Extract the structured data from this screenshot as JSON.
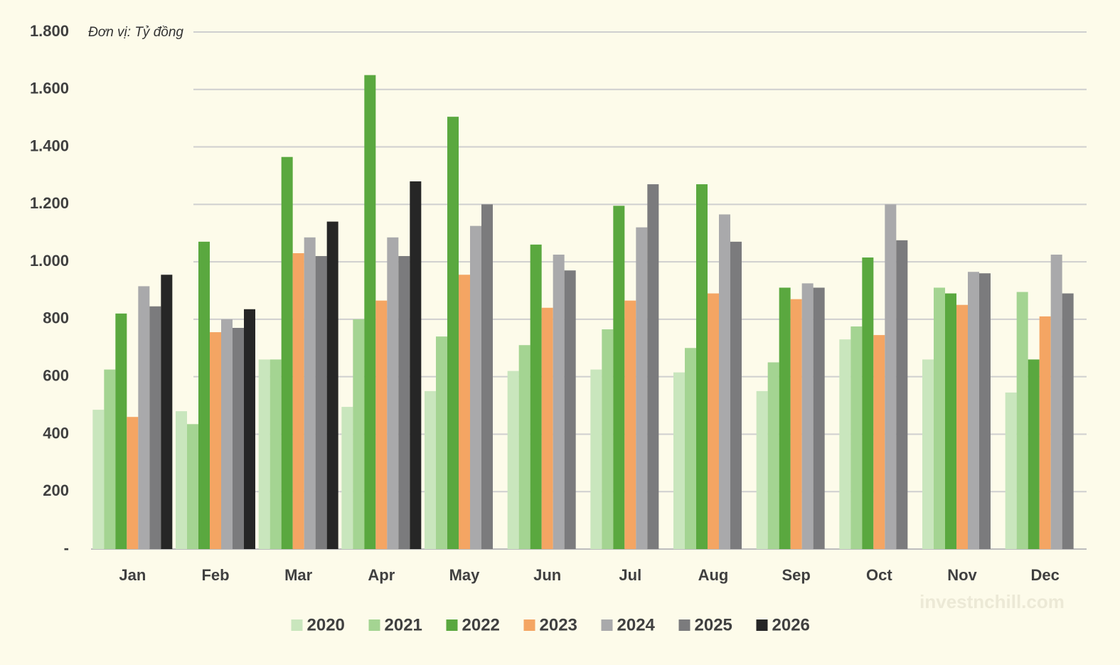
{
  "chart_data": {
    "type": "bar",
    "unit_label": "Đơn vị: Tỷ đồng",
    "watermark": "investnchill.com",
    "categories": [
      "Jan",
      "Feb",
      "Mar",
      "Apr",
      "May",
      "Jun",
      "Jul",
      "Aug",
      "Sep",
      "Oct",
      "Nov",
      "Dec"
    ],
    "series": [
      {
        "name": "2020",
        "color": "#c9e6bd",
        "values": [
          485,
          480,
          660,
          495,
          550,
          620,
          625,
          615,
          550,
          730,
          660,
          545
        ]
      },
      {
        "name": "2021",
        "color": "#a4d492",
        "values": [
          625,
          435,
          660,
          800,
          740,
          710,
          765,
          700,
          650,
          775,
          910,
          895
        ]
      },
      {
        "name": "2022",
        "color": "#5aa83f",
        "values": [
          820,
          1070,
          1365,
          1650,
          1505,
          1060,
          1195,
          1270,
          910,
          1015,
          890,
          660
        ]
      },
      {
        "name": "2023",
        "color": "#f4a563",
        "values": [
          460,
          755,
          1030,
          865,
          955,
          840,
          865,
          890,
          870,
          745,
          850,
          810
        ]
      },
      {
        "name": "2024",
        "color": "#a9a9ab",
        "values": [
          915,
          800,
          1085,
          1085,
          1125,
          1025,
          1120,
          1165,
          925,
          1200,
          965,
          1025
        ]
      },
      {
        "name": "2025",
        "color": "#7b7b7d",
        "values": [
          845,
          770,
          1020,
          1020,
          1200,
          970,
          1270,
          1070,
          910,
          1075,
          960,
          890
        ]
      },
      {
        "name": "2026",
        "color": "#262626",
        "values": [
          955,
          835,
          1140,
          1280,
          null,
          null,
          null,
          null,
          null,
          null,
          null,
          null
        ]
      }
    ],
    "ylim": [
      0,
      1800
    ],
    "yticks": [
      {
        "value": 0,
        "label": "-"
      },
      200,
      400,
      600,
      800,
      {
        "value": 1000,
        "label": "1.000"
      },
      {
        "value": 1200,
        "label": "1.200"
      },
      {
        "value": 1400,
        "label": "1.400"
      },
      {
        "value": 1600,
        "label": "1.600"
      },
      {
        "value": 1800,
        "label": "1.800"
      }
    ],
    "grid": true,
    "legend": "bottom"
  }
}
